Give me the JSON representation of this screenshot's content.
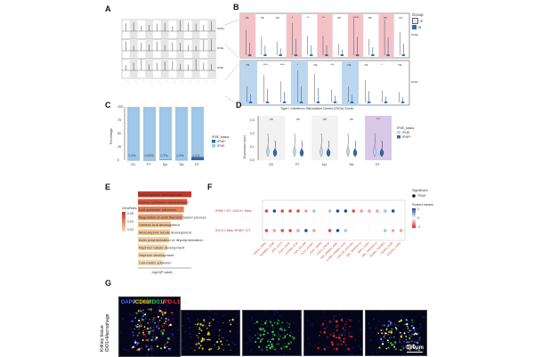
{
  "panels": {
    "A": "A",
    "B": "B",
    "C": "C",
    "D": "D",
    "E": "E",
    "F": "F",
    "G": "G"
  },
  "panel_A": {
    "row_labels": [
      "IFNE+",
      "IFNE-",
      "IFNE"
    ],
    "group_count": 12
  },
  "panel_B": {
    "legend_title": "Group",
    "legend_items": [
      {
        "label": "IF",
        "color": "#e7e7f3"
      },
      {
        "label": "M",
        "color": "#2a6bb0"
      }
    ],
    "row_labels": [
      "IFNE+",
      "IFNE-"
    ],
    "top_sig": [
      "ns",
      "ns",
      "ns",
      "*",
      "**",
      "**",
      "ns",
      "*****",
      "ns",
      "ns",
      "ns"
    ],
    "bottom_sig": [
      "ns",
      "****",
      "****",
      "*",
      "ns",
      "***",
      "ns",
      "ns",
      "*",
      "ns"
    ],
    "highlight_top": "#f4c2c6",
    "highlight_bottom": "#bcd6ef"
  },
  "panel_C": {
    "chart_data": {
      "type": "bar",
      "categories": [
        "CD",
        "PT",
        "Epi",
        "TAL",
        "DT"
      ],
      "series": [
        {
          "name": "IFNE+",
          "values": [
            0.2,
            0.02,
            0.7,
            0.3,
            6.3
          ]
        },
        {
          "name": "IFNE-",
          "values": [
            99.8,
            99.98,
            99.3,
            99.7,
            93.7
          ]
        }
      ],
      "labels": [
        "0.2%",
        "0.02%",
        "0.7%",
        "0.3%",
        "6.3%"
      ],
      "ylabel": "Percentage",
      "yticks": [
        "0",
        "25",
        "50",
        "75",
        "100"
      ],
      "ylim": [
        0,
        100
      ],
      "legend_title": "IFNE_status",
      "legend_items": [
        "IFNE+",
        "IFNE-"
      ],
      "colors": {
        "IFNE+": "#2a6bb0",
        "IFNE-": "#9ec7e8"
      }
    }
  },
  "panel_D": {
    "chart_data": {
      "type": "violin",
      "title": "Type I Interferon-Stimulated Genes (ISGs) Score",
      "categories": [
        "CD",
        "PT",
        "Epi",
        "TAL",
        "DT"
      ],
      "ylabel": "Expression level",
      "yticks": [
        "0.0",
        "0.1",
        "0.2",
        "0.3"
      ],
      "ylim": [
        0,
        0.3
      ],
      "sig": [
        "ns",
        "ns",
        "ns",
        "ns",
        "***"
      ],
      "legend_title": "IFNE_status",
      "legend_items": [
        "IFNE-",
        "IFNE+"
      ],
      "colors": {
        "IFNE-": "#bcd6ef",
        "IFNE+": "#2a6bb0",
        "highlight": "#d9c8e8"
      }
    }
  },
  "panel_E": {
    "chart_data": {
      "type": "bar",
      "categories": [
        "Renal system development",
        "Kidney epithelium development",
        "Cell-substrate adhesion",
        "Regulation of actin filament-based process",
        "Ureteric bud development",
        "Mesonephric tubule development",
        "Actin polymerization or depolymerization",
        "Nephron tubule development",
        "Nephron development",
        "Cell-matrix adhesion"
      ],
      "values": [
        1.0,
        0.92,
        0.86,
        0.84,
        0.62,
        0.6,
        0.58,
        0.55,
        0.5,
        0.46
      ],
      "xlabel": "-log10(P value)",
      "legend_title": "GeneRatio",
      "legend_values": [
        "0.05",
        "0.04",
        "0.03"
      ],
      "colors": [
        "#c0392b",
        "#d6553a",
        "#e37d52",
        "#e89b6c",
        "#f0c090",
        "#f2c99a",
        "#f3cfa2",
        "#f4d4aa",
        "#f5d8b0",
        "#f6dcb6"
      ]
    }
  },
  "panel_F": {
    "row_labels": [
      "IFNE+ DT -IDO1+ Mac",
      "IDO1+ Mac-IFNE+ DT"
    ],
    "legend_significant": "Significant",
    "legend_significant_value": "TRUE",
    "legend_scaled": "Scaled means",
    "legend_scaled_ticks": [
      "1",
      "0",
      "-1"
    ],
    "x_labels": [
      "ANXA1_FPR1",
      "ADGRE5_CD55",
      "APP_CD74",
      "CD44_HAS2",
      "CADM3_PVR",
      "CD6_ALCAM",
      "CCL2_ACKR1",
      "CD47_SIRPA",
      "CSF1_CSF1R",
      "FN1_integrin_a5b1",
      "ICAM1_integrin_aLb2",
      "LGALS9_HAVCR2",
      "MIF_TNFRSF14",
      "SPP1_CD44",
      "TNF_TNFRSF1A",
      "TGFB1_TGFBR1",
      "VEGFA_KDR",
      "COL4A1_CD44"
    ]
  },
  "panel_G": {
    "side_label": "IDO1+Macrophage",
    "side_label2": "Kidney tissue",
    "stain_labels": [
      {
        "text": "DAPI",
        "color": "#4a6cff"
      },
      {
        "text": "/",
        "color": "#ffffff"
      },
      {
        "text": "CD68",
        "color": "#f2d21b"
      },
      {
        "text": "/",
        "color": "#ffffff"
      },
      {
        "text": "IDO1",
        "color": "#38d638"
      },
      {
        "text": "/",
        "color": "#ffffff"
      },
      {
        "text": "PD-L1",
        "color": "#ff3030"
      }
    ],
    "scale_bar": "100μm"
  }
}
